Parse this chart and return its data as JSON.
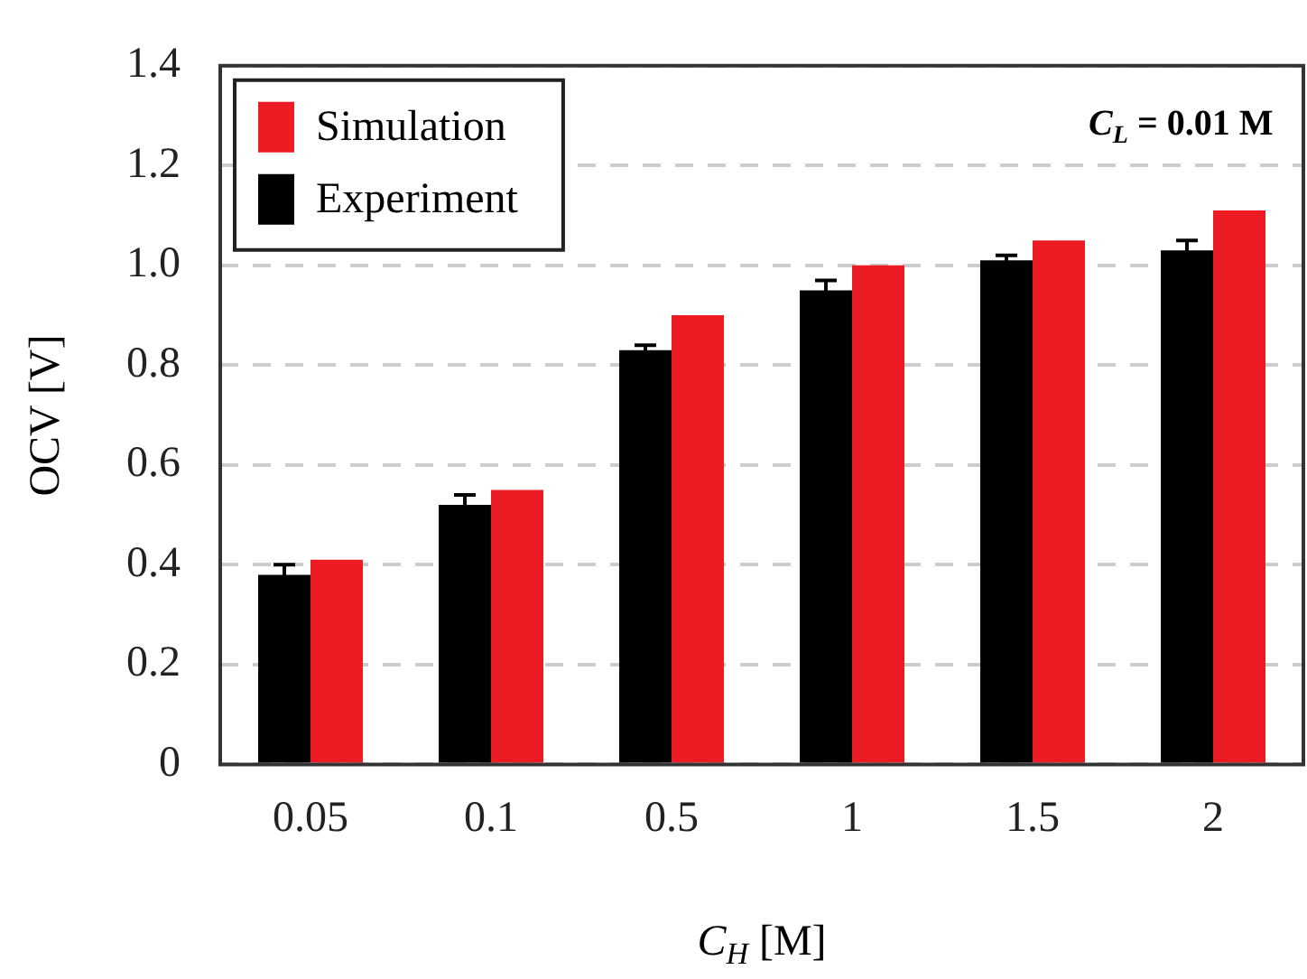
{
  "chart_data": {
    "type": "bar",
    "xlabel": "C$_{H}$ [M]",
    "ylabel": "OCV [V]",
    "categories": [
      "0.05",
      "0.1",
      "0.5",
      "1",
      "1.5",
      "2"
    ],
    "series": [
      {
        "name": "Experiment",
        "color": "#000000",
        "values": [
          0.38,
          0.52,
          0.83,
          0.95,
          1.01,
          1.03
        ],
        "errors": [
          0.02,
          0.02,
          0.01,
          0.02,
          0.01,
          0.02
        ]
      },
      {
        "name": "Simulation",
        "color": "#ed1c24",
        "values": [
          0.41,
          0.55,
          0.9,
          1.0,
          1.05,
          1.11
        ]
      }
    ],
    "ylim": [
      0,
      1.4
    ],
    "yticks": [
      0,
      0.2,
      0.4,
      0.6,
      0.8,
      {
        "value": 1,
        "label": "1.0"
      },
      1.2,
      1.4
    ],
    "grid": "y",
    "legend": "top left",
    "annotations": [
      "C$_{L}$ = 0.01 M"
    ]
  }
}
